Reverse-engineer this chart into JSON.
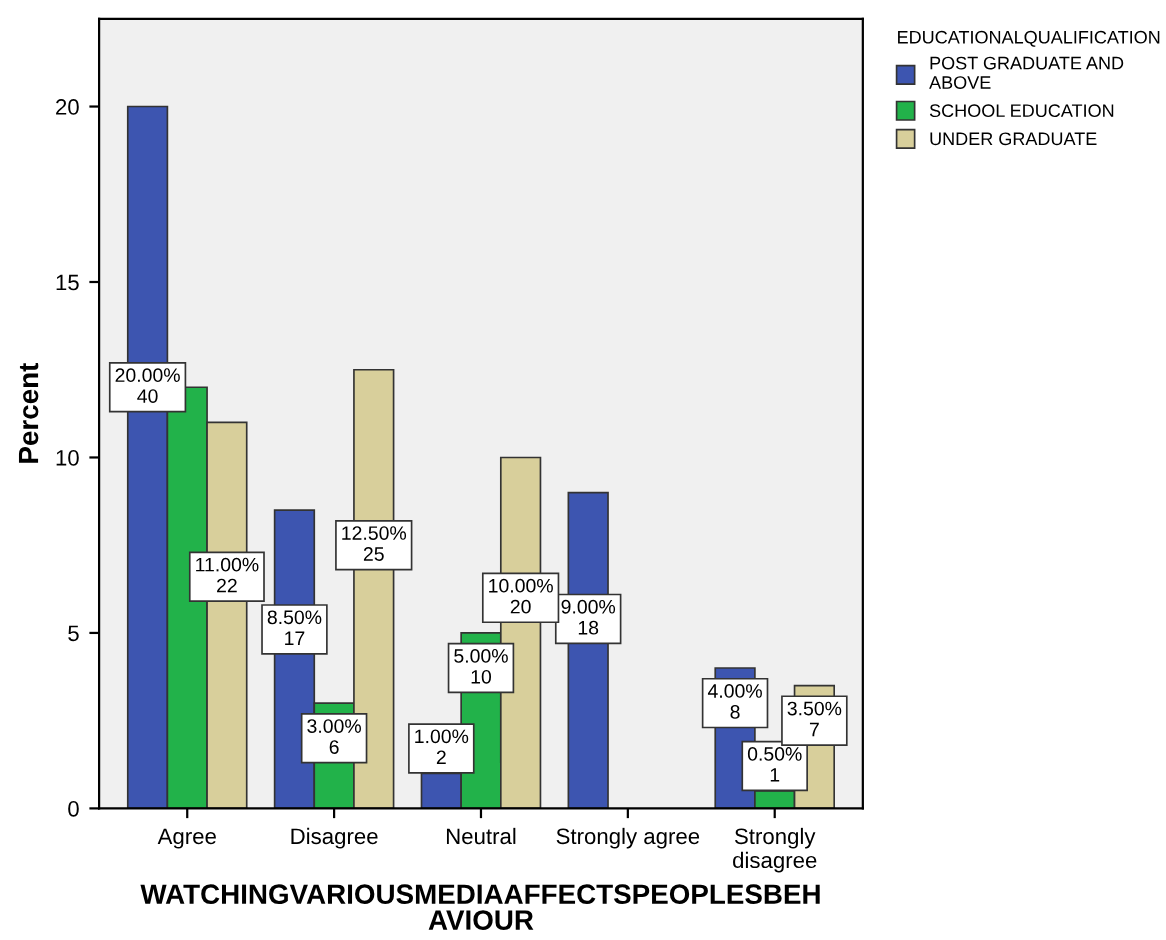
{
  "chart_data": {
    "type": "bar",
    "xlabel": "WATCHINGVARIOUSMEDIAAFFECTSPEOPLESBEH\nAVIOUR",
    "ylabel": "Percent",
    "legend_title": "EDUCATIONALQUALIFICATION",
    "legend": "top right",
    "grid": false,
    "categories": [
      "Agree",
      "Disagree",
      "Neutral",
      "Strongly agree",
      "Strongly\ndisagree"
    ],
    "ylim": [
      0,
      22.5
    ],
    "yticks": [
      0,
      5,
      10,
      15,
      20
    ],
    "series": [
      {
        "name": "POST GRADUATE AND\nABOVE",
        "color": "#3d55b0",
        "values": [
          20,
          8.5,
          1,
          9,
          4
        ],
        "value_labels": [
          "20.00%\n40",
          "8.50%\n17",
          "1.00%\n2",
          "9.00%\n18",
          "4.00%\n8"
        ]
      },
      {
        "name": "SCHOOL EDUCATION",
        "color": "#22b24a",
        "values": [
          12,
          3,
          5,
          null,
          0.5
        ],
        "value_labels": [
          null,
          "3.00%\n6",
          "5.00%\n10",
          null,
          "0.50%\n1"
        ]
      },
      {
        "name": "UNDER GRADUATE",
        "color": "#d8cf9b",
        "values": [
          11,
          12.5,
          10,
          null,
          3.5
        ],
        "value_labels": [
          "11.00%\n22",
          "12.50%\n25",
          "10.00%\n20",
          null,
          "3.50%\n7"
        ]
      }
    ]
  }
}
